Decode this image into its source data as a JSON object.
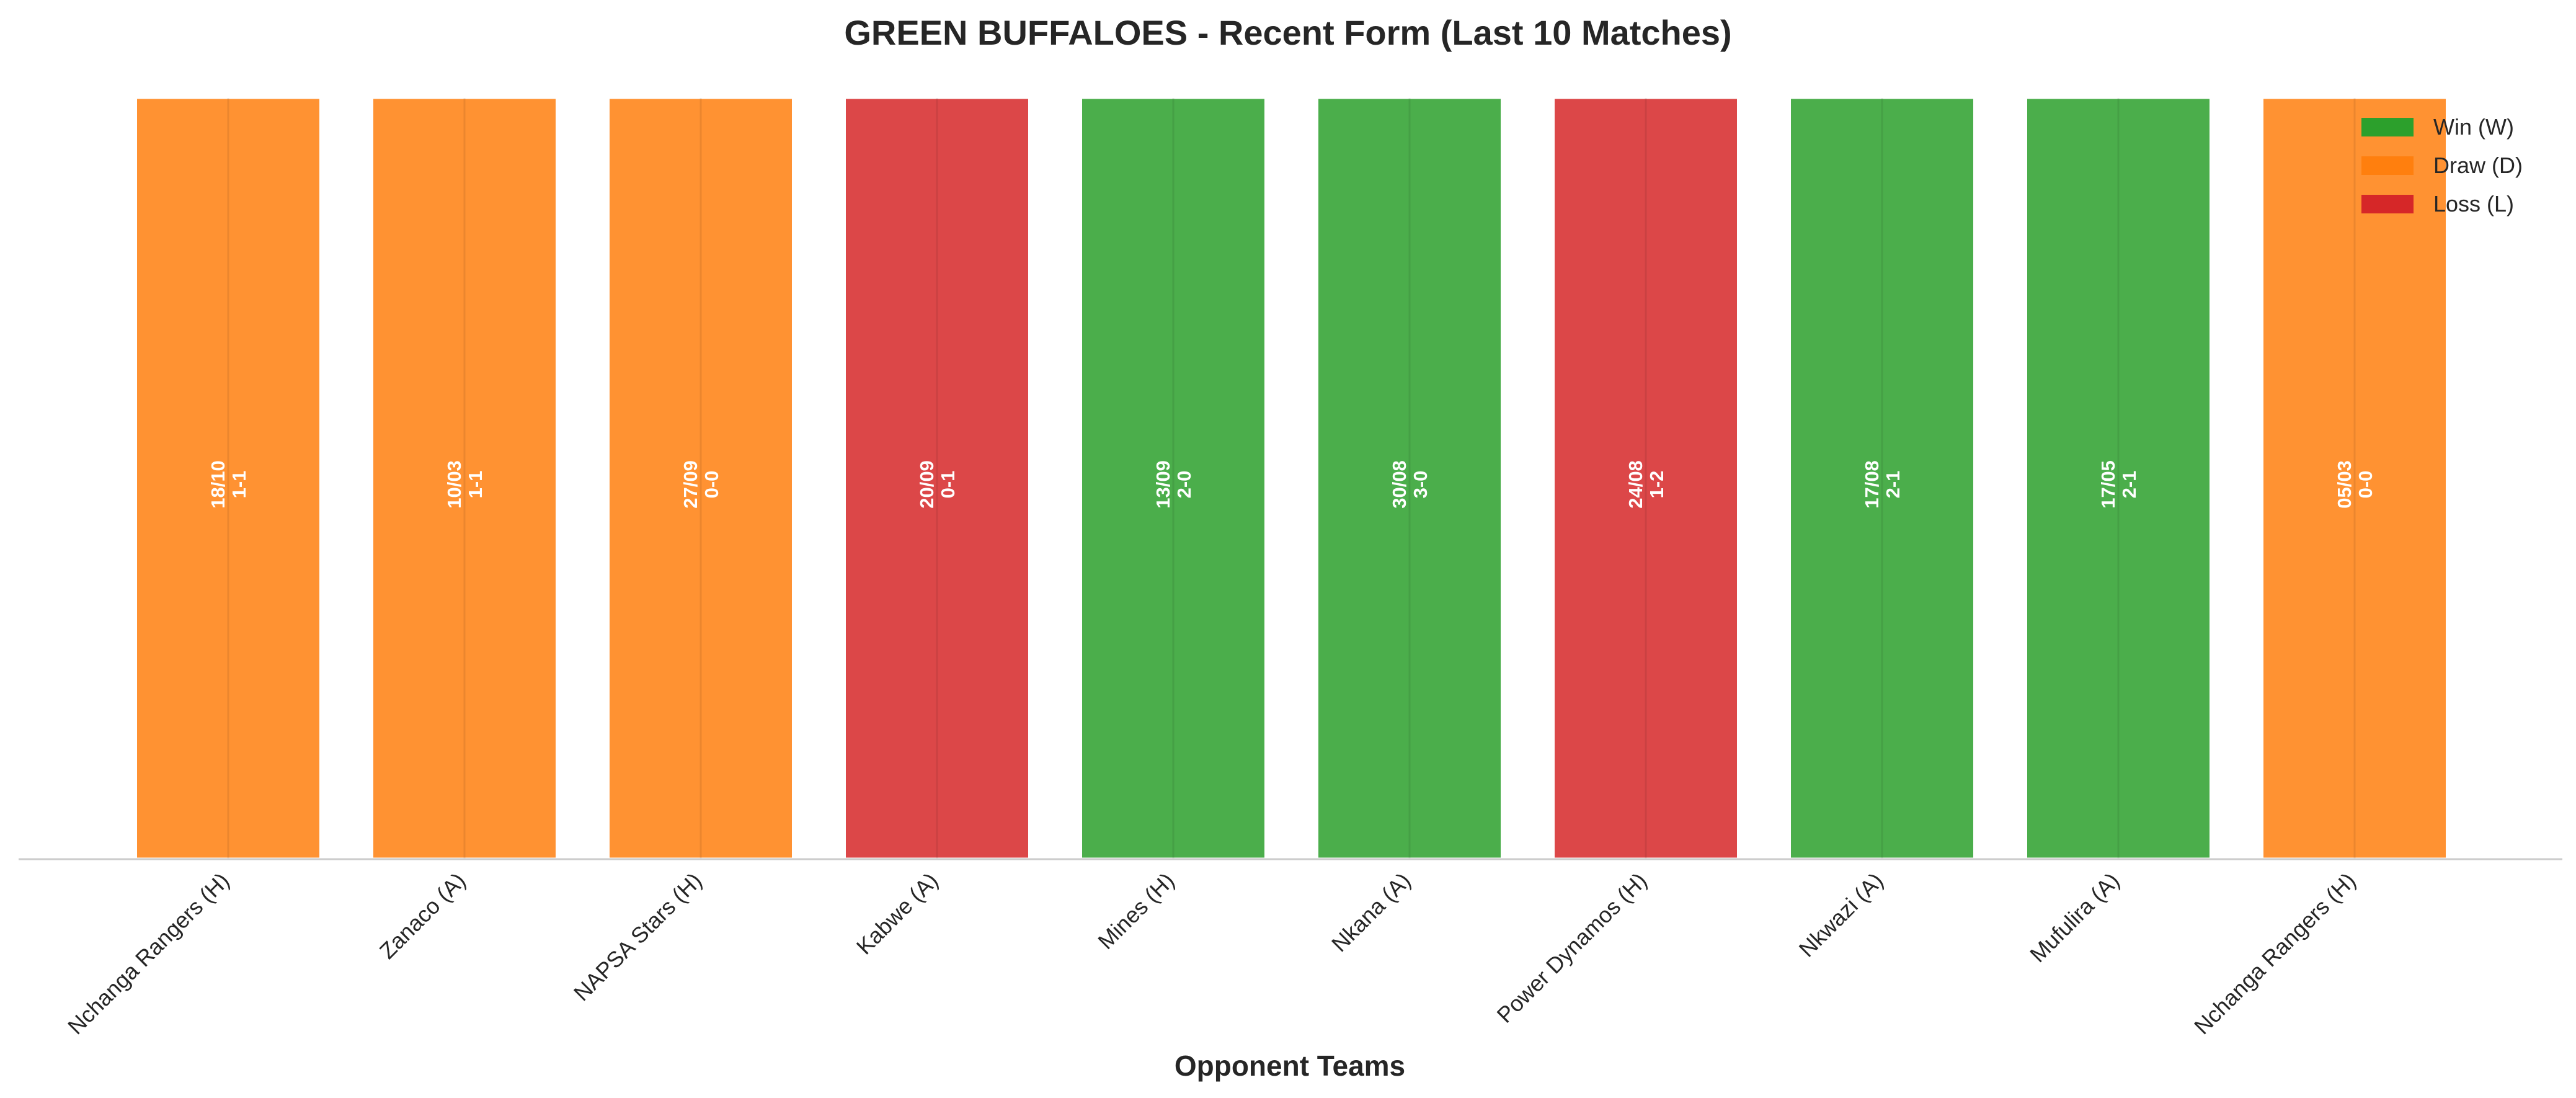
{
  "chart_data": {
    "type": "bar",
    "title": "GREEN BUFFALOES - Recent Form (Last 10 Matches)",
    "xlabel": "Opponent Teams",
    "ylabel": "",
    "ylim": [
      0,
      1
    ],
    "grid": false,
    "legend_position": "top-right",
    "colors": {
      "W": "#2ca02c",
      "D": "#ff7f0e",
      "L": "#d62728"
    },
    "legend": [
      {
        "key": "W",
        "label": "Win (W)"
      },
      {
        "key": "D",
        "label": "Draw (D)"
      },
      {
        "key": "L",
        "label": "Loss (L)"
      }
    ],
    "categories": [
      "Nchanga Rangers (H)",
      "Zanaco (A)",
      "NAPSA Stars (H)",
      "Kabwe (A)",
      "Mines (H)",
      "Nkana (A)",
      "Power Dynamos (H)",
      "Nkwazi (A)",
      "Mufulira (A)",
      "Nchanga Rangers (H)"
    ],
    "values": [
      1,
      1,
      1,
      1,
      1,
      1,
      1,
      1,
      1,
      1
    ],
    "results": [
      "D",
      "D",
      "D",
      "L",
      "W",
      "W",
      "L",
      "W",
      "W",
      "D"
    ],
    "dates": [
      "18/10",
      "10/03",
      "27/09",
      "20/09",
      "13/09",
      "30/08",
      "24/08",
      "17/08",
      "17/05",
      "05/03"
    ],
    "scores": [
      "1-1",
      "1-1",
      "0-0",
      "0-1",
      "2-0",
      "3-0",
      "1-2",
      "2-1",
      "2-1",
      "0-0"
    ]
  }
}
